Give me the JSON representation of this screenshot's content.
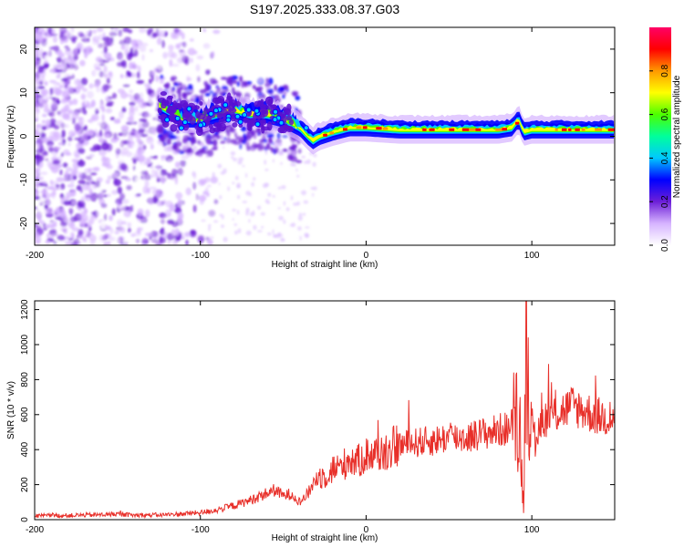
{
  "title": "S197.2025.333.08.37.G03",
  "chart_data": [
    {
      "type": "heatmap",
      "title": "S197.2025.333.08.37.G03",
      "xlabel": "Height of straight line (km)",
      "ylabel": "Frequency (Hz)",
      "xlim": [
        -200,
        150
      ],
      "ylim": [
        -25,
        25
      ],
      "xticks": [
        -200,
        -100,
        0,
        100
      ],
      "yticks": [
        -20,
        -10,
        0,
        10,
        20
      ],
      "ridge": {
        "description": "dominant frequency track",
        "x": [
          -125,
          -110,
          -100,
          -90,
          -80,
          -70,
          -60,
          -50,
          -45,
          -40,
          -35,
          -32,
          -28,
          -20,
          -10,
          0,
          20,
          40,
          60,
          80,
          88,
          92,
          95,
          100,
          120,
          150
        ],
        "y": [
          7,
          4,
          4,
          5,
          6,
          5,
          5,
          4,
          3,
          2,
          0,
          -1,
          0,
          1,
          2,
          2,
          1.5,
          1.5,
          1.5,
          1.5,
          2,
          4,
          1,
          1.5,
          1.5,
          1.5
        ]
      },
      "colorbar": {
        "label": "Normalized spectral amplitude",
        "range": [
          0,
          1
        ],
        "ticks": [
          "0.0",
          "0.2",
          "0.4",
          "0.6",
          "0.8"
        ],
        "colors": [
          "#ffffff",
          "#d6b4ff",
          "#6d1fd8",
          "#0000ff",
          "#00c8ff",
          "#00ff9c",
          "#4cff00",
          "#ffff00",
          "#ff9900",
          "#ff0000",
          "#ff0066"
        ]
      }
    },
    {
      "type": "line",
      "xlabel": "Height of straight line (km)",
      "ylabel": "SNR (10 * v/v)",
      "xlim": [
        -200,
        150
      ],
      "ylim": [
        0,
        1250
      ],
      "xticks": [
        -200,
        -100,
        0,
        100
      ],
      "yticks": [
        0,
        200,
        400,
        600,
        800,
        1000,
        1200
      ],
      "series": [
        {
          "name": "SNR",
          "color": "#e8302a",
          "x": [
            -200,
            -180,
            -160,
            -150,
            -140,
            -120,
            -100,
            -90,
            -80,
            -70,
            -60,
            -55,
            -50,
            -45,
            -40,
            -35,
            -30,
            -25,
            -20,
            -15,
            -10,
            -5,
            0,
            10,
            20,
            25,
            30,
            40,
            50,
            60,
            70,
            80,
            85,
            90,
            93,
            95,
            96,
            97,
            98,
            99,
            100,
            101,
            102,
            105,
            110,
            115,
            120,
            125,
            130,
            140,
            150
          ],
          "values": [
            22,
            24,
            28,
            32,
            25,
            28,
            40,
            55,
            80,
            110,
            150,
            170,
            135,
            150,
            100,
            150,
            240,
            250,
            290,
            300,
            350,
            330,
            370,
            380,
            430,
            430,
            440,
            450,
            470,
            470,
            490,
            510,
            520,
            550,
            500,
            50,
            760,
            1000,
            900,
            760,
            450,
            320,
            380,
            560,
            590,
            610,
            630,
            650,
            630,
            590,
            580
          ]
        }
      ]
    }
  ]
}
